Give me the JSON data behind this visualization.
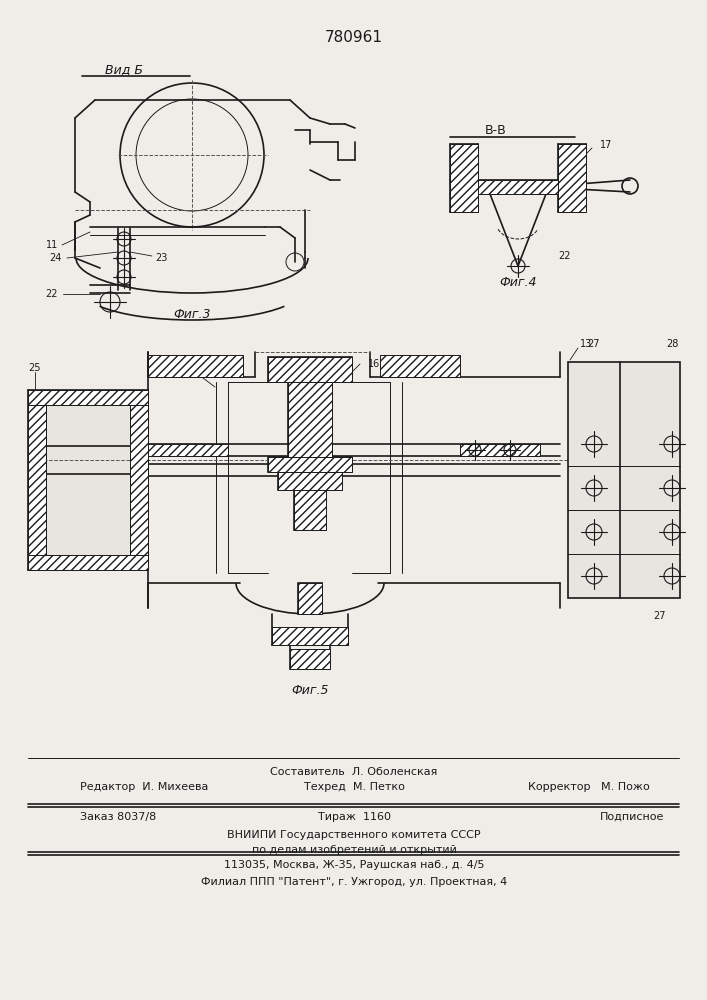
{
  "patent_number": "780961",
  "bg_color": "#f0ede8",
  "line_color": "#1a1a1a",
  "fig3_label": "Вид Б",
  "fig3_caption": "Фиг.3",
  "fig4_caption": "Фиг.4",
  "fig5_caption": "Фиг.5",
  "section_label": "В-В",
  "footer_line1": "Составитель  Л. Оболенская",
  "footer_line2_left": "Редактор  И. Михеева",
  "footer_line2_mid": "Техред  М. Петко",
  "footer_line2_right": "Корректор   М. Пожо",
  "footer_line3_left": "Заказ 8037/8",
  "footer_line3_mid": "Тираж  1160",
  "footer_line3_right": "Подписное",
  "footer_line4": "ВНИИПИ Государственного комитета СССР",
  "footer_line5": "по делам изобретений и открытий",
  "footer_line6": "113035, Москва, Ж-35, Раушская наб., д. 4/5",
  "footer_bottom": "Филиал ППП \"Патент\", г. Ужгород, ул. Проектная, 4"
}
